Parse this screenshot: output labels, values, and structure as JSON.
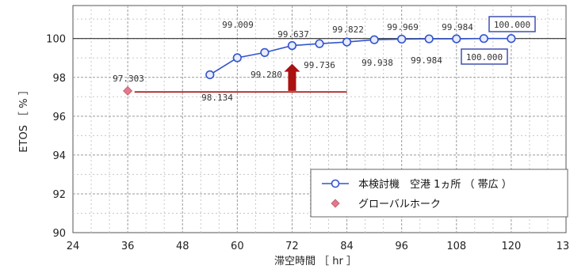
{
  "chart_data": {
    "type": "scatter",
    "xlabel": "滞空時間 ［ hr ］",
    "ylabel": "ETOS ［ % ］",
    "xlim": [
      24,
      132
    ],
    "ylim": [
      90,
      101.7
    ],
    "x_ticks": [
      24,
      36,
      48,
      60,
      72,
      84,
      96,
      108,
      120,
      132
    ],
    "y_ticks": [
      90,
      92,
      94,
      96,
      98,
      100
    ],
    "grid": true,
    "legend_position": "bottom-right",
    "series": [
      {
        "name": "本検討機　空港 1ヵ所 （ 帯広 ）",
        "color": "#3355cc",
        "marker": "circle",
        "x": [
          54,
          60,
          66,
          72,
          78,
          84,
          90,
          96,
          102,
          108,
          114,
          120
        ],
        "y": [
          98.134,
          99.009,
          99.28,
          99.637,
          99.736,
          99.822,
          99.938,
          99.969,
          99.984,
          99.984,
          100.0,
          100.0
        ]
      },
      {
        "name": "グローバルホーク",
        "color": "#e07a8a",
        "marker": "diamond",
        "x": [
          36
        ],
        "y": [
          97.303
        ]
      }
    ],
    "data_labels": [
      {
        "text": "98.134"
      },
      {
        "text": "99.009"
      },
      {
        "text": "99.280"
      },
      {
        "text": "99.637"
      },
      {
        "text": "99.736"
      },
      {
        "text": "99.822"
      },
      {
        "text": "99.938"
      },
      {
        "text": "99.969"
      },
      {
        "text": "99.984"
      },
      {
        "text": "99.984"
      },
      {
        "text": "100.000"
      },
      {
        "text": "100.000"
      },
      {
        "text": "97.303"
      }
    ],
    "annotations": {
      "reference_line": {
        "x_start": 37.5,
        "x_end": 84,
        "y": 97.25,
        "color": "#aa1111"
      },
      "arrow": {
        "x": 72,
        "y_from": 97.3,
        "y_to": 98.7,
        "color": "#aa1111"
      }
    }
  }
}
